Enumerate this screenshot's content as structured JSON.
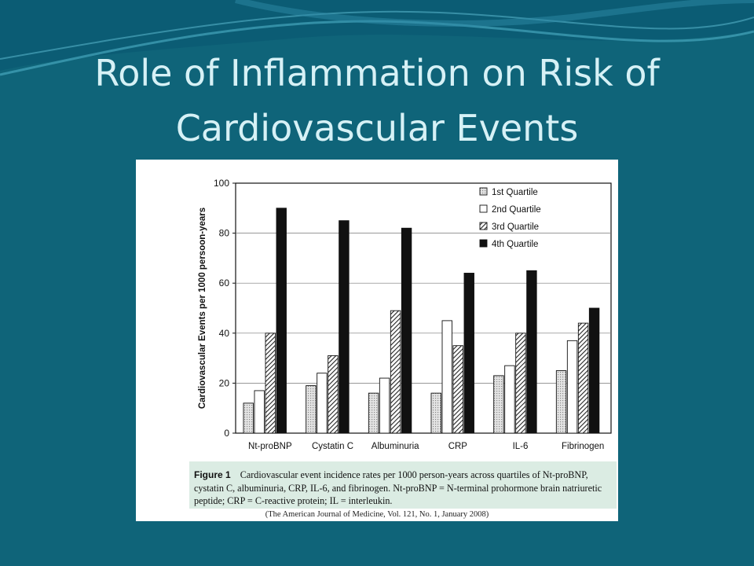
{
  "slide": {
    "title_line1": "Role of Inflammation on Risk of",
    "title_line2": "Cardiovascular Events"
  },
  "colors": {
    "background": "#0f6479",
    "title": "#d6f1f6",
    "caption_bg": "#dbece3",
    "q1": "#c9c9c9",
    "q2": "#ffffff",
    "q3": "hatched",
    "q4": "#111111"
  },
  "chart_data": {
    "type": "bar",
    "title": "",
    "xlabel": "",
    "ylabel": "Cardiovascular Events per 1000 persoon-years",
    "ylim": [
      0,
      100
    ],
    "yticks": [
      0,
      20,
      40,
      60,
      80,
      100
    ],
    "grid": true,
    "legend_position": "top-right",
    "categories": [
      "Nt-proBNP",
      "Cystatin C",
      "Albuminuria",
      "CRP",
      "IL-6",
      "Fibrinogen"
    ],
    "series": [
      {
        "name": "1st Quartile",
        "values": [
          12,
          19,
          16,
          16,
          23,
          25
        ]
      },
      {
        "name": "2nd Quartile",
        "values": [
          17,
          24,
          22,
          45,
          27,
          37
        ]
      },
      {
        "name": "3rd Quartile",
        "values": [
          40,
          31,
          49,
          35,
          40,
          44
        ]
      },
      {
        "name": "4th Quartile",
        "values": [
          90,
          85,
          82,
          64,
          65,
          50
        ]
      }
    ]
  },
  "caption": {
    "label": "Figure 1",
    "text": "Cardiovascular event incidence rates per 1000 person-years across quartiles of Nt-proBNP, cystatin C, albuminuria, CRP, IL-6, and fibrinogen. Nt-proBNP = N-terminal prohormone brain natriuretic peptide; CRP = C-reactive protein; IL = interleukin."
  },
  "citation": "(The American Journal of Medicine, Vol. 121, No. 1, January 2008)"
}
